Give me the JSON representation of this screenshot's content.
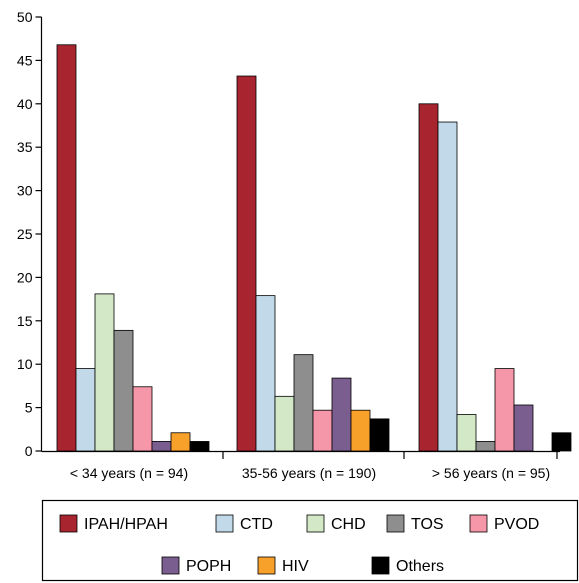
{
  "chart_data": {
    "type": "bar",
    "title": "",
    "xlabel": "",
    "ylabel": "",
    "ylim": [
      0,
      50
    ],
    "yticks": [
      0,
      5,
      10,
      15,
      20,
      25,
      30,
      35,
      40,
      45,
      50
    ],
    "grid": false,
    "legend_position": "bottom",
    "categories": [
      "< 34 years (n = 94)",
      "35-56 years (n = 190)",
      "> 56 years (n = 95)"
    ],
    "series": [
      {
        "name": "IPAH/HPAH",
        "color": "#a8242f",
        "values": [
          46.8,
          43.2,
          40.0
        ]
      },
      {
        "name": "CTD",
        "color": "#c2d9ea",
        "values": [
          9.5,
          17.9,
          37.9
        ]
      },
      {
        "name": "CHD",
        "color": "#d3e8c6",
        "values": [
          18.1,
          6.3,
          4.2
        ]
      },
      {
        "name": "TOS",
        "color": "#8e8e8e",
        "values": [
          13.9,
          11.1,
          1.1
        ]
      },
      {
        "name": "PVOD",
        "color": "#f597a8",
        "values": [
          7.4,
          4.7,
          9.5
        ]
      },
      {
        "name": "POPH",
        "color": "#7b5e90",
        "values": [
          1.1,
          8.4,
          5.3
        ]
      },
      {
        "name": "HIV",
        "color": "#f7a12a",
        "values": [
          2.1,
          4.7,
          0
        ]
      },
      {
        "name": "Others",
        "color": "#000000",
        "values": [
          1.1,
          3.7,
          2.1
        ]
      }
    ]
  }
}
